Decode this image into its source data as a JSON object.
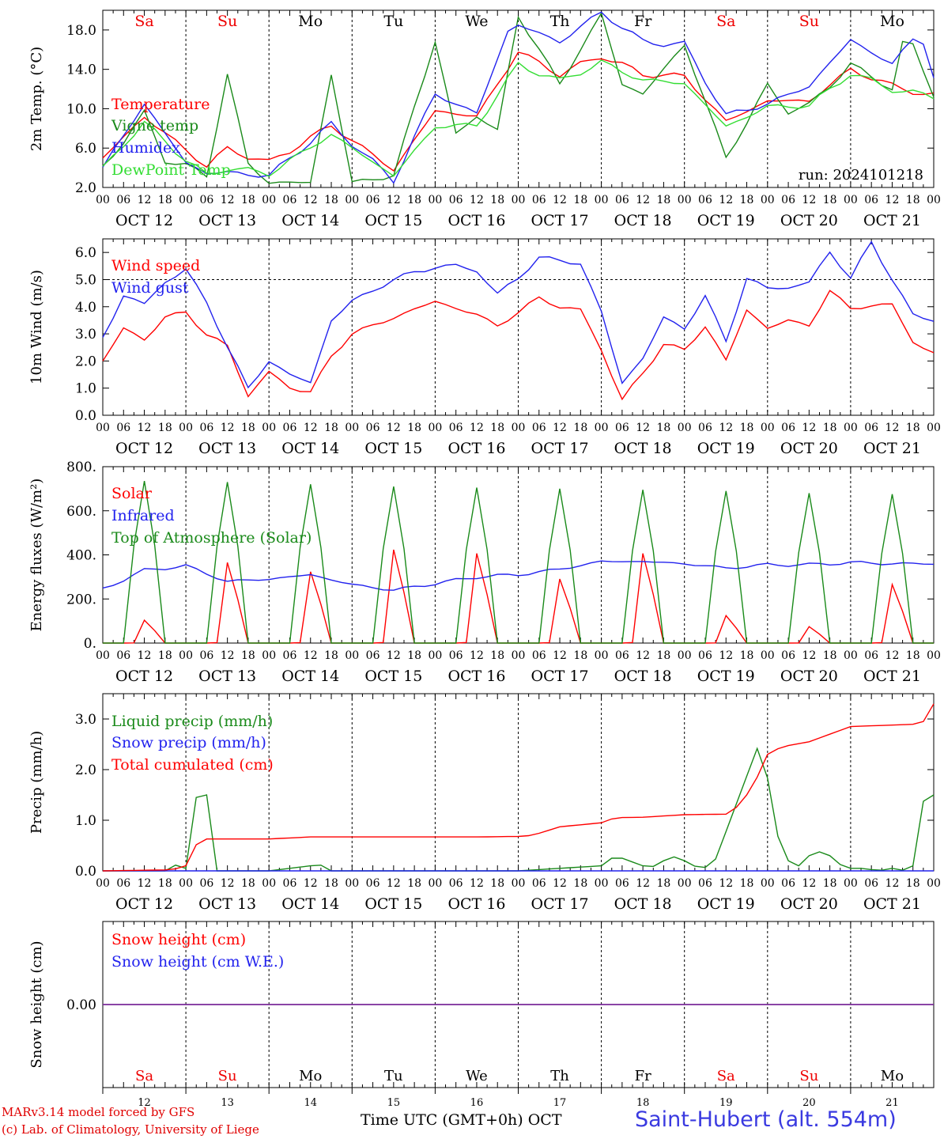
{
  "colors": {
    "red": "#ff0000",
    "dkgreen": "#1a8a1a",
    "blue": "#2222ee",
    "ltgreen": "#33dd33",
    "purple": "#7a2a9a",
    "axis": "#000000"
  },
  "x_axis": {
    "hour_labels": [
      "00",
      "06",
      "12",
      "18"
    ],
    "final_hour": "00",
    "date_labels": [
      "OCT 12",
      "OCT 13",
      "OCT 14",
      "OCT 15",
      "OCT 16",
      "OCT 17",
      "OCT 18",
      "OCT 19",
      "OCT 20",
      "OCT 21"
    ],
    "weekdays": [
      "Sa",
      "Su",
      "Mo",
      "Tu",
      "We",
      "Th",
      "Fr",
      "Sa",
      "Su",
      "Mo"
    ],
    "weekday_colors": [
      "red",
      "red",
      "black",
      "black",
      "black",
      "black",
      "black",
      "red",
      "red",
      "black"
    ],
    "day_numbers": [
      "12",
      "13",
      "14",
      "15",
      "16",
      "17",
      "18",
      "19",
      "20",
      "21"
    ]
  },
  "footer": {
    "model_line": "MARv3.14 model forced by GFS",
    "lab_line": "(c) Lab. of Climatology, University of Liege",
    "time_label": "Time UTC (GMT+0h) OCT",
    "station": "Saint-Hubert (alt. 554m)"
  },
  "chart_data": [
    {
      "type": "line",
      "ylabel": "2m Temp. (°C)",
      "ylim": [
        2,
        20
      ],
      "ytick_labels": [
        "2.0",
        "6.0",
        "10.0",
        "14.0",
        "18.0"
      ],
      "annotation": "run: 2024101218",
      "x_unit": "hours since Oct 12 00 UTC",
      "series": [
        {
          "name": "Temperature",
          "color": "red",
          "x": [
            0,
            12,
            24,
            30,
            36,
            48,
            66,
            84,
            96,
            108,
            120,
            132,
            144,
            156,
            168,
            180,
            192,
            204,
            216,
            228,
            240
          ],
          "values": [
            5,
            9.2,
            5.8,
            4.2,
            5.9,
            4.5,
            8.3,
            3.8,
            9.8,
            9.2,
            15.8,
            13.5,
            15.4,
            13.5,
            13.3,
            8.7,
            10.8,
            10.8,
            14.0,
            12.3,
            11.3
          ]
        },
        {
          "name": "Vigne temp",
          "color": "dkgreen",
          "x": [
            0,
            12,
            18,
            24,
            30,
            36,
            42,
            48,
            60,
            66,
            72,
            84,
            96,
            102,
            108,
            114,
            120,
            132,
            144,
            150,
            156,
            168,
            180,
            192,
            198,
            204,
            216,
            228,
            232,
            240
          ],
          "values": [
            4,
            9.5,
            4.8,
            4.2,
            3.2,
            13.5,
            4.4,
            2.5,
            2.5,
            13.5,
            2.5,
            3.2,
            17,
            7.2,
            9.5,
            7.6,
            19.5,
            12.5,
            19.6,
            12.5,
            11.5,
            16.5,
            5,
            12.3,
            9.8,
            10.3,
            14.5,
            12.0,
            18.2,
            11.3
          ]
        },
        {
          "name": "Humidex",
          "color": "blue",
          "x": [
            0,
            12,
            24,
            30,
            36,
            48,
            66,
            84,
            96,
            108,
            118,
            132,
            144,
            156,
            168,
            180,
            192,
            204,
            216,
            228,
            236,
            240
          ],
          "values": [
            4,
            10.5,
            4.5,
            3.5,
            3.5,
            3.2,
            8.4,
            2.7,
            11.5,
            9.5,
            18.8,
            16.8,
            19.8,
            16.8,
            16.5,
            9.3,
            10.5,
            12.3,
            17,
            14.5,
            18,
            13.2
          ]
        },
        {
          "name": "DewPoint Temp",
          "color": "ltgreen",
          "x": [
            0,
            12,
            24,
            30,
            36,
            48,
            66,
            84,
            96,
            108,
            120,
            132,
            144,
            156,
            168,
            180,
            192,
            204,
            216,
            228,
            240
          ],
          "values": [
            4,
            8.6,
            4.8,
            3.2,
            4.0,
            3.4,
            7.4,
            3.2,
            8.2,
            8.3,
            14.5,
            12.8,
            14.7,
            12.9,
            12.6,
            8.2,
            10.2,
            10.3,
            13.6,
            12.0,
            11.2
          ]
        }
      ]
    },
    {
      "type": "line",
      "ylabel": "10m Wind (m/s)",
      "ylim": [
        0,
        6.5
      ],
      "ytick_labels": [
        "0.0",
        "1.0",
        "2.0",
        "3.0",
        "4.0",
        "5.0",
        "6.0"
      ],
      "reference_line": 5.0,
      "x_unit": "hours since Oct 12 00 UTC",
      "series": [
        {
          "name": "Wind speed",
          "color": "red",
          "x": [
            0,
            6,
            12,
            18,
            24,
            30,
            36,
            42,
            48,
            54,
            60,
            66,
            72,
            84,
            96,
            108,
            114,
            126,
            138,
            144,
            150,
            156,
            162,
            168,
            174,
            180,
            186,
            192,
            198,
            204,
            210,
            216,
            222,
            228,
            234,
            240
          ],
          "values": [
            2.0,
            3.2,
            2.8,
            3.6,
            3.8,
            3.0,
            2.5,
            0.8,
            1.5,
            1.1,
            0.8,
            2.2,
            3.0,
            3.6,
            4.2,
            3.7,
            3.3,
            4.3,
            3.8,
            2.5,
            0.5,
            1.6,
            2.6,
            2.4,
            3.3,
            2.0,
            3.9,
            3.2,
            3.5,
            3.3,
            4.6,
            3.9,
            4.1,
            4.0,
            2.8,
            2.2
          ]
        },
        {
          "name": "Wind gust",
          "color": "blue",
          "x": [
            0,
            6,
            12,
            18,
            24,
            30,
            36,
            42,
            48,
            54,
            60,
            66,
            72,
            84,
            96,
            108,
            114,
            126,
            138,
            144,
            150,
            156,
            162,
            168,
            174,
            180,
            186,
            192,
            198,
            204,
            210,
            216,
            222,
            228,
            234,
            240
          ],
          "values": [
            2.8,
            4.5,
            4.0,
            5.0,
            5.3,
            4.2,
            2.5,
            1.0,
            2.0,
            1.5,
            1.2,
            3.5,
            4.2,
            5.0,
            5.5,
            5.4,
            4.4,
            5.8,
            5.6,
            3.8,
            1.2,
            2.1,
            3.6,
            3.2,
            4.4,
            2.7,
            5.1,
            4.6,
            4.8,
            4.8,
            6.1,
            5.0,
            6.4,
            5.0,
            3.7,
            3.5
          ]
        }
      ]
    },
    {
      "type": "line",
      "ylabel": "Energy fluxes (W/m²)",
      "ylim": [
        0,
        800
      ],
      "ytick_labels": [
        "0.",
        "200.",
        "400.",
        "600.",
        "800."
      ],
      "x_unit": "hours since Oct 12 00 UTC",
      "series": [
        {
          "name": "Solar",
          "color": "red",
          "daily_peak_hour": 13,
          "daily_peaks": [
            125,
            440,
            390,
            510,
            490,
            350,
            490,
            150,
            90,
            320
          ]
        },
        {
          "name": "Infrared",
          "color": "blue",
          "x": [
            0,
            12,
            24,
            36,
            48,
            60,
            72,
            84,
            96,
            108,
            120,
            132,
            144,
            156,
            168,
            180,
            192,
            204,
            216,
            228,
            240
          ],
          "values": [
            245,
            330,
            350,
            280,
            290,
            310,
            265,
            240,
            270,
            300,
            310,
            335,
            370,
            370,
            360,
            340,
            355,
            355,
            365,
            360,
            360
          ]
        },
        {
          "name": "Top of Atmosphere (Solar)",
          "color": "dkgreen",
          "daily_peak_hour": 12,
          "daily_peaks": [
            735,
            730,
            720,
            710,
            705,
            700,
            695,
            690,
            680,
            675
          ]
        }
      ]
    },
    {
      "type": "line",
      "ylabel": "Precip (mm/h)",
      "ylim": [
        0,
        3.5
      ],
      "ytick_labels": [
        "0.0",
        "1.0",
        "2.0",
        "3.0"
      ],
      "x_unit": "hours since Oct 12 00 UTC",
      "series": [
        {
          "name": "Liquid precip (mm/h)",
          "color": "dkgreen",
          "x": [
            0,
            18,
            22,
            24,
            26,
            28,
            30,
            32,
            48,
            60,
            62,
            66,
            120,
            144,
            148,
            152,
            158,
            162,
            166,
            170,
            176,
            190,
            196,
            200,
            202,
            204,
            208,
            212,
            214,
            220,
            224,
            228,
            232,
            234,
            236,
            238,
            240
          ],
          "values": [
            0,
            0,
            0.15,
            0.05,
            1.4,
            1.5,
            1.5,
            0,
            0,
            0.1,
            0.15,
            0,
            0,
            0.1,
            0.3,
            0.2,
            0.05,
            0.2,
            0.3,
            0.1,
            0.05,
            2.6,
            0.3,
            0.1,
            0.1,
            0.3,
            0.4,
            0.2,
            0.05,
            0.05,
            0,
            0.05,
            0,
            0.1,
            1.0,
            1.75,
            1.5
          ]
        },
        {
          "name": "Snow precip (mm/h)",
          "color": "blue",
          "x": [
            0,
            240
          ],
          "values": [
            0,
            0
          ]
        },
        {
          "name": "Total cumulated (cm)",
          "color": "red",
          "x": [
            0,
            20,
            24,
            26,
            28,
            48,
            60,
            108,
            120,
            124,
            132,
            144,
            148,
            156,
            168,
            180,
            184,
            188,
            192,
            196,
            204,
            216,
            228,
            236,
            238,
            240
          ],
          "values": [
            0,
            0.02,
            0.1,
            0.4,
            0.63,
            0.63,
            0.67,
            0.67,
            0.68,
            0.7,
            0.87,
            0.95,
            1.05,
            1.06,
            1.11,
            1.12,
            1.3,
            1.7,
            2.3,
            2.45,
            2.55,
            2.85,
            2.88,
            2.9,
            3.0,
            3.3
          ]
        }
      ]
    },
    {
      "type": "line",
      "ylabel": "Snow height (cm)",
      "ytick_labels": [
        "0.00"
      ],
      "x_unit": "hours since Oct 12 00 UTC",
      "series": [
        {
          "name": "Snow height (cm)",
          "color": "red",
          "x": [
            0,
            240
          ],
          "values": [
            0,
            0
          ]
        },
        {
          "name": "Snow height (cm W.E.)",
          "color": "blue",
          "x": [
            0,
            240
          ],
          "values": [
            0,
            0
          ]
        }
      ]
    }
  ]
}
